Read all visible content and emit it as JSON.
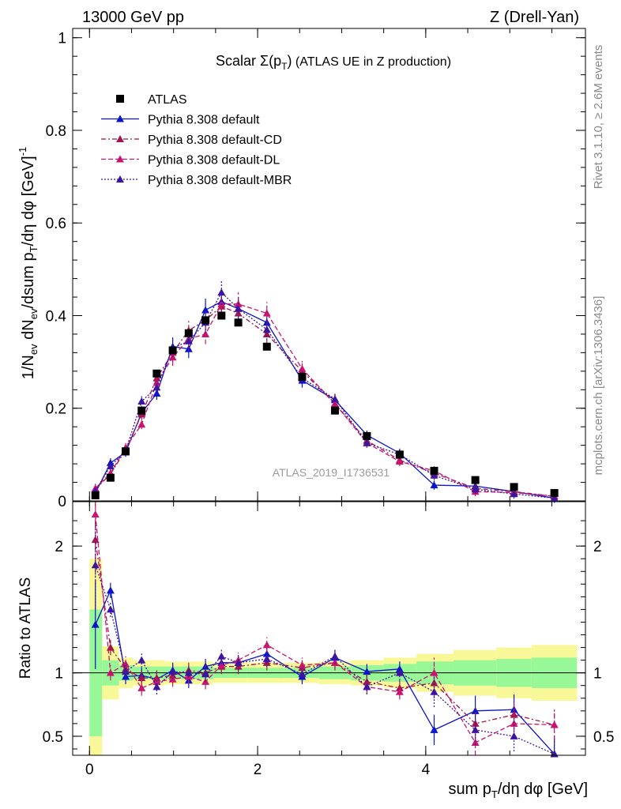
{
  "header": {
    "left": "13000 GeV pp",
    "right": "Z (Drell-Yan)"
  },
  "side_labels": {
    "rivet": "Rivet 3.1.10, ≥ 2.6M events",
    "mcplots": "mcplots.cern.ch [arXiv:1306.3436]"
  },
  "watermark": "ATLAS_2019_I1736531",
  "colors": {
    "data": "#000000",
    "default": "#0a14c8",
    "cd": "#a0154a",
    "dl": "#c8146e",
    "mbr": "#3c14a0",
    "band_inner": "#98f898",
    "band_outer": "#f8f898"
  },
  "chart_data": [
    {
      "type": "scatter",
      "panel": "main",
      "title": "Scalar Σ(pT) (ATLAS UE in Z production)",
      "title_parts": {
        "prefix": "Scalar ",
        "sigma": "Σ(p",
        "sub": "T",
        "close": ")",
        "suffix": " (ATLAS UE in Z production)"
      },
      "ylabel": "1/Nev dNev/dsum pT/dη dφ [GeV]-1",
      "xlabel": "sum pT/dη dφ [GeV]",
      "xlim": [
        -0.2,
        5.9
      ],
      "ylim": [
        0,
        1.02
      ],
      "xticks": [
        0,
        2,
        4
      ],
      "yticks": [
        0,
        0.2,
        0.4,
        0.6,
        0.8,
        1
      ],
      "ytick_labels": [
        "0",
        "0.2",
        "0.4",
        "0.6",
        "0.8",
        "1"
      ],
      "xtick_labels": [
        "0",
        "2",
        "4"
      ],
      "x": [
        0.07,
        0.25,
        0.43,
        0.62,
        0.8,
        0.99,
        1.18,
        1.38,
        1.57,
        1.77,
        2.11,
        2.53,
        2.92,
        3.3,
        3.69,
        4.1,
        4.59,
        5.05,
        5.53
      ],
      "series": [
        {
          "name": "ATLAS",
          "key": "data",
          "values": [
            0.012,
            0.05,
            0.107,
            0.195,
            0.275,
            0.325,
            0.362,
            0.39,
            0.4,
            0.385,
            0.333,
            0.268,
            0.195,
            0.14,
            0.1,
            0.065,
            0.045,
            0.03,
            0.017
          ]
        },
        {
          "name": "Pythia 8.308 default",
          "key": "default",
          "values": [
            0.017,
            0.082,
            0.105,
            0.19,
            0.232,
            0.333,
            0.328,
            0.412,
            0.43,
            0.415,
            0.385,
            0.26,
            0.218,
            0.142,
            0.103,
            0.034,
            0.032,
            0.02,
            0.006
          ]
        },
        {
          "name": "Pythia 8.308 default-CD",
          "key": "cd",
          "values": [
            0.025,
            0.058,
            0.11,
            0.187,
            0.265,
            0.32,
            0.368,
            0.39,
            0.42,
            0.405,
            0.36,
            0.28,
            0.21,
            0.13,
            0.088,
            0.06,
            0.027,
            0.02,
            0.01
          ]
        },
        {
          "name": "Pythia 8.308 default-DL",
          "key": "dl",
          "values": [
            0.027,
            0.06,
            0.115,
            0.165,
            0.255,
            0.31,
            0.35,
            0.36,
            0.425,
            0.425,
            0.405,
            0.285,
            0.21,
            0.125,
            0.085,
            0.065,
            0.02,
            0.018,
            0.01
          ]
        },
        {
          "name": "Pythia 8.308 default-MBR",
          "key": "mbr",
          "values": [
            0.022,
            0.075,
            0.108,
            0.215,
            0.245,
            0.33,
            0.345,
            0.385,
            0.45,
            0.415,
            0.37,
            0.265,
            0.22,
            0.125,
            0.1,
            0.055,
            0.025,
            0.015,
            0.006
          ]
        }
      ]
    },
    {
      "type": "line",
      "panel": "ratio",
      "ylabel": "Ratio to ATLAS",
      "ylim": [
        0.35,
        2.35
      ],
      "yticks": [
        0.5,
        1,
        2
      ],
      "ytick_labels": [
        "0.5",
        "1",
        "2"
      ],
      "x": [
        0.07,
        0.25,
        0.43,
        0.62,
        0.8,
        0.99,
        1.18,
        1.38,
        1.57,
        1.77,
        2.11,
        2.53,
        2.92,
        3.3,
        3.69,
        4.1,
        4.59,
        5.05,
        5.53
      ],
      "band_edges": [
        0.0,
        0.15,
        0.35,
        0.52,
        0.71,
        0.9,
        1.08,
        1.28,
        1.47,
        1.67,
        1.87,
        2.31,
        2.73,
        3.11,
        3.5,
        3.89,
        4.33,
        4.84,
        5.26,
        5.8
      ],
      "band_inner": [
        0.5,
        0.1,
        0.06,
        0.05,
        0.05,
        0.05,
        0.05,
        0.05,
        0.04,
        0.04,
        0.04,
        0.04,
        0.05,
        0.06,
        0.07,
        0.09,
        0.1,
        0.11,
        0.12
      ],
      "band_outer": [
        0.9,
        0.21,
        0.12,
        0.1,
        0.1,
        0.09,
        0.09,
        0.09,
        0.08,
        0.08,
        0.08,
        0.08,
        0.09,
        0.1,
        0.12,
        0.15,
        0.18,
        0.2,
        0.22
      ],
      "series": [
        {
          "name": "Pythia 8.308 default",
          "key": "default",
          "values": [
            1.38,
            1.65,
            0.97,
            0.98,
            0.95,
            1.02,
            0.94,
            1.05,
            1.08,
            1.08,
            1.15,
            0.97,
            1.12,
            1.01,
            1.03,
            0.55,
            0.7,
            0.71,
            0.36
          ]
        },
        {
          "name": "Pythia 8.308 default-CD",
          "key": "cd",
          "values": [
            2.05,
            1.2,
            1.03,
            0.96,
            0.96,
            0.98,
            1.02,
            1.0,
            1.05,
            1.05,
            1.08,
            1.04,
            1.08,
            0.93,
            0.88,
            0.92,
            0.6,
            0.67,
            0.59
          ]
        },
        {
          "name": "Pythia 8.308 default-DL",
          "key": "dl",
          "values": [
            2.25,
            1.0,
            1.07,
            0.88,
            0.93,
            0.95,
            0.97,
            0.93,
            1.06,
            1.1,
            1.22,
            1.06,
            1.08,
            0.89,
            0.85,
            1.0,
            0.45,
            0.6,
            0.59
          ]
        },
        {
          "name": "Pythia 8.308 default-MBR",
          "key": "mbr",
          "values": [
            1.85,
            1.5,
            1.01,
            1.1,
            0.89,
            1.01,
            1.0,
            0.99,
            1.13,
            1.08,
            1.11,
            0.99,
            1.13,
            0.89,
            1.0,
            0.85,
            0.55,
            0.5,
            0.36
          ]
        }
      ]
    }
  ]
}
